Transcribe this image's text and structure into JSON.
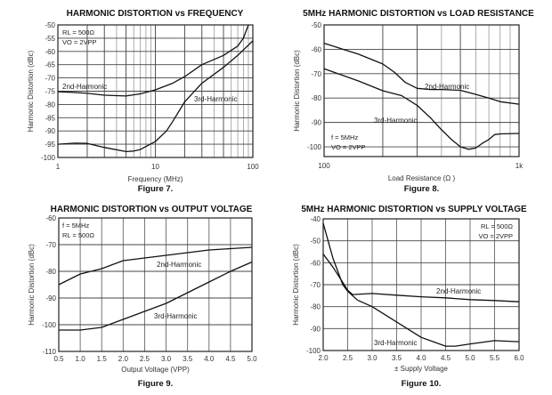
{
  "chart_data": [
    {
      "type": "line",
      "title": "HARMONIC DISTORTION vs FREQUENCY",
      "caption": "Figure 7.",
      "xlabel": "Frequency (MHz)",
      "ylabel": "Harmonic Distortion (dBc)",
      "xscale": "log",
      "xlim": [
        1,
        100
      ],
      "ylim": [
        -100,
        -50
      ],
      "xticks": [
        1,
        10,
        100
      ],
      "xtick_labels": [
        "1",
        "10",
        "100"
      ],
      "yticks": [
        -50,
        -55,
        -60,
        -65,
        -70,
        -75,
        -80,
        -85,
        -90,
        -95,
        -100
      ],
      "ytick_labels": [
        "-50",
        "-55",
        "-60",
        "-65",
        "-70",
        "-75",
        "-80",
        "-85",
        "-90",
        "-95",
        "-100"
      ],
      "grid": true,
      "annotations": [
        "RL = 500Ω",
        "VO = 2VPP"
      ],
      "series": [
        {
          "name": "2nd-Harmonic",
          "x": [
            1,
            1.5,
            2,
            3,
            5,
            7,
            10,
            15,
            20,
            30,
            50,
            70,
            80,
            90
          ],
          "y": [
            -75.2,
            -75.5,
            -75.8,
            -76.5,
            -76.8,
            -76,
            -74.5,
            -72,
            -69.5,
            -65,
            -61.5,
            -58,
            -55,
            -50
          ]
        },
        {
          "name": "3rd-Harmonic",
          "x": [
            1,
            1.5,
            2,
            3,
            5,
            6,
            7,
            10,
            13,
            15,
            20,
            30,
            50,
            70,
            100
          ],
          "y": [
            -95,
            -94.6,
            -94.7,
            -96.2,
            -97.8,
            -97.6,
            -97,
            -94,
            -90,
            -86.5,
            -79,
            -72,
            -66,
            -61.5,
            -56
          ]
        }
      ]
    },
    {
      "type": "line",
      "title": "5MHz HARMONIC DISTORTION vs LOAD RESISTANCE",
      "caption": "Figure 8.",
      "xlabel": "Load Resistance (Ω )",
      "ylabel": "Harmonic Distortion (dBc)",
      "xscale": "log",
      "xlim": [
        100,
        1000
      ],
      "ylim": [
        -104,
        -50
      ],
      "xticks": [
        100,
        1000
      ],
      "xtick_labels": [
        "100",
        "1k"
      ],
      "yticks": [
        -50,
        -60,
        -70,
        -80,
        -90,
        -100
      ],
      "ytick_labels": [
        "-50",
        "-60",
        "-70",
        "-80",
        "-90",
        "-100"
      ],
      "grid": true,
      "annotations": [
        "f = 5MHz",
        "VO = 2VPP"
      ],
      "series": [
        {
          "name": "2nd-Harmonic",
          "x": [
            100,
            150,
            200,
            230,
            260,
            300,
            350,
            400,
            500,
            600,
            700,
            800,
            1000
          ],
          "y": [
            -57.5,
            -62,
            -66,
            -69.5,
            -73.5,
            -76,
            -76.5,
            -76.5,
            -76.8,
            -78.5,
            -80,
            -81.5,
            -82.5
          ]
        },
        {
          "name": "3rd-Harmonic",
          "x": [
            100,
            150,
            200,
            250,
            300,
            350,
            400,
            450,
            500,
            550,
            600,
            650,
            700,
            750,
            800,
            1000
          ],
          "y": [
            -68,
            -73,
            -77,
            -79,
            -83,
            -88,
            -93,
            -97,
            -100,
            -101,
            -100.5,
            -98.5,
            -97,
            -95,
            -94.7,
            -94.5
          ]
        }
      ]
    },
    {
      "type": "line",
      "title": "HARMONIC DISTORTION vs OUTPUT VOLTAGE",
      "caption": "Figure 9.",
      "xlabel": "Output Voltage (VPP)",
      "ylabel": "Harmonic Distortion (dBc)",
      "xscale": "linear",
      "xlim": [
        0.5,
        5.0
      ],
      "ylim": [
        -110,
        -60
      ],
      "xticks": [
        0.5,
        1.0,
        1.5,
        2.0,
        2.5,
        3.0,
        3.5,
        4.0,
        4.5,
        5.0
      ],
      "xtick_labels": [
        "0.5",
        "1.0",
        "1.5",
        "2.0",
        "2.5",
        "3.0",
        "3.5",
        "4.0",
        "4.5",
        "5.0"
      ],
      "yticks": [
        -60,
        -70,
        -80,
        -90,
        -100,
        -110
      ],
      "ytick_labels": [
        "-60",
        "-70",
        "-80",
        "-90",
        "-100",
        "-110"
      ],
      "grid": true,
      "annotations": [
        "f = 5MHz",
        "RL = 500Ω"
      ],
      "series": [
        {
          "name": "2nd-Harmonic",
          "x": [
            0.5,
            1.0,
            1.5,
            2.0,
            2.5,
            3.0,
            3.5,
            4.0,
            4.5,
            5.0
          ],
          "y": [
            -85,
            -81,
            -79,
            -76,
            -75,
            -74,
            -73,
            -72,
            -71.5,
            -71
          ]
        },
        {
          "name": "3rd-Harmonic",
          "x": [
            0.5,
            1.0,
            1.5,
            2.0,
            2.5,
            3.0,
            3.5,
            4.0,
            4.5,
            5.0
          ],
          "y": [
            -102,
            -102,
            -101,
            -98,
            -95,
            -92,
            -88,
            -84,
            -80,
            -76.5
          ]
        }
      ]
    },
    {
      "type": "line",
      "title": "5MHz HARMONIC DISTORTION vs SUPPLY VOLTAGE",
      "caption": "Figure 10.",
      "xlabel": "± Supply Voltage",
      "ylabel": "Harmonic Distortion (dBc)",
      "xscale": "linear",
      "xlim": [
        2.0,
        6.0
      ],
      "ylim": [
        -100,
        -40
      ],
      "xticks": [
        2.0,
        2.5,
        3.0,
        3.5,
        4.0,
        4.5,
        5.0,
        5.5,
        6.0
      ],
      "xtick_labels": [
        "2.0",
        "2.5",
        "3.0",
        "3.5",
        "4.0",
        "4.5",
        "5.0",
        "5.5",
        "6.0"
      ],
      "yticks": [
        -40,
        -50,
        -60,
        -70,
        -80,
        -90,
        -100
      ],
      "ytick_labels": [
        "-40",
        "-50",
        "-60",
        "-70",
        "-80",
        "-90",
        "-100"
      ],
      "grid": true,
      "annotations": [
        "RL = 500Ω",
        "VO = 2VPP"
      ],
      "series": [
        {
          "name": "2nd-Harmonic",
          "x": [
            2.0,
            2.2,
            2.4,
            2.5,
            2.6,
            3.0,
            3.5,
            4.0,
            4.5,
            5.0,
            5.5,
            6.0
          ],
          "y": [
            -56,
            -62,
            -69,
            -72.5,
            -74.5,
            -74,
            -74.8,
            -75.5,
            -76,
            -76.8,
            -77.2,
            -77.8
          ]
        },
        {
          "name": "3rd-Harmonic",
          "x": [
            2.0,
            2.2,
            2.4,
            2.5,
            2.7,
            3.0,
            3.5,
            4.0,
            4.5,
            4.7,
            5.0,
            5.5,
            6.0
          ],
          "y": [
            -42,
            -58,
            -70,
            -73,
            -77,
            -80,
            -87,
            -94,
            -98,
            -98,
            -97,
            -95.5,
            -96
          ]
        }
      ]
    }
  ]
}
